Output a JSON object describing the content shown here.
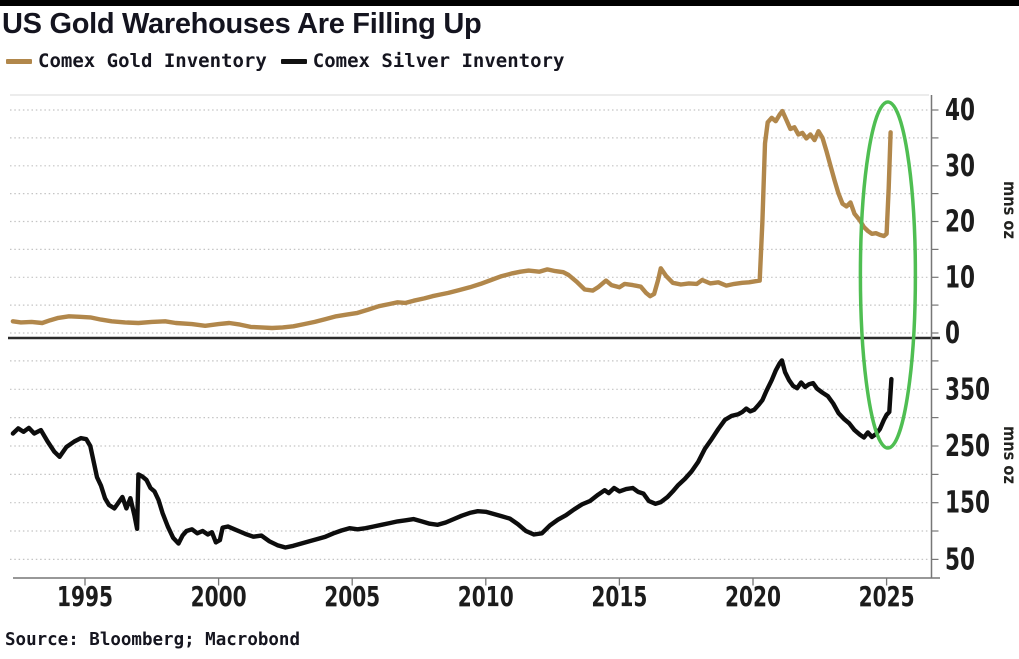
{
  "title": "US Gold Warehouses Are Filling Up",
  "legend": [
    {
      "label": "Comex Gold Inventory",
      "color": "#b1874b"
    },
    {
      "label": "Comex Silver Inventory",
      "color": "#111111"
    }
  ],
  "source": "Source: Bloomberg; Macrobond",
  "colors": {
    "gold_line": "#b1874b",
    "silver_line": "#0d0d0d",
    "highlight_green": "#4fbe52",
    "gridline": "#c4c4c4",
    "axis": "#777777",
    "separator": "#2b2b2b",
    "text": "#1c1c1c",
    "top_bar": "#000000"
  },
  "x_axis": {
    "ticks": [
      1995,
      2000,
      2005,
      2010,
      2015,
      2020,
      2025
    ],
    "range": [
      1992.1,
      2026.9
    ]
  },
  "annotation": {
    "shape": "ellipse",
    "color": "#4fbe52",
    "center_year": 2025.05,
    "description": "green ellipse highlighting the early-2025 spike in both gold and silver inventories"
  },
  "chart_data": [
    {
      "type": "line",
      "panel": "top",
      "name": "Comex Gold Inventory",
      "ylabel": "mns oz",
      "color": "#b1874b",
      "yticks": [
        0,
        10,
        20,
        30,
        40
      ],
      "ygrid_step": 5,
      "grid_from": 0,
      "grid_to": 40,
      "ylim": [
        0,
        42.5
      ],
      "x_unit": "year",
      "points": [
        [
          1992.3,
          2.1
        ],
        [
          1992.6,
          1.9
        ],
        [
          1993.0,
          2.0
        ],
        [
          1993.4,
          1.8
        ],
        [
          1993.7,
          2.3
        ],
        [
          1994.0,
          2.7
        ],
        [
          1994.4,
          3.0
        ],
        [
          1994.8,
          2.9
        ],
        [
          1995.2,
          2.8
        ],
        [
          1995.6,
          2.4
        ],
        [
          1996.0,
          2.1
        ],
        [
          1996.5,
          1.9
        ],
        [
          1997.0,
          1.8
        ],
        [
          1997.5,
          2.0
        ],
        [
          1998.0,
          2.1
        ],
        [
          1998.4,
          1.8
        ],
        [
          1999.0,
          1.6
        ],
        [
          1999.5,
          1.3
        ],
        [
          2000.0,
          1.6
        ],
        [
          2000.4,
          1.8
        ],
        [
          2000.8,
          1.5
        ],
        [
          2001.2,
          1.1
        ],
        [
          2001.6,
          1.0
        ],
        [
          2002.0,
          0.9
        ],
        [
          2002.4,
          1.0
        ],
        [
          2002.8,
          1.2
        ],
        [
          2003.2,
          1.6
        ],
        [
          2003.6,
          2.0
        ],
        [
          2004.0,
          2.5
        ],
        [
          2004.4,
          3.0
        ],
        [
          2004.8,
          3.3
        ],
        [
          2005.2,
          3.6
        ],
        [
          2005.6,
          4.2
        ],
        [
          2006.0,
          4.8
        ],
        [
          2006.4,
          5.2
        ],
        [
          2006.7,
          5.5
        ],
        [
          2007.0,
          5.4
        ],
        [
          2007.3,
          5.8
        ],
        [
          2007.7,
          6.2
        ],
        [
          2008.0,
          6.6
        ],
        [
          2008.3,
          6.9
        ],
        [
          2008.6,
          7.2
        ],
        [
          2009.0,
          7.7
        ],
        [
          2009.4,
          8.2
        ],
        [
          2009.8,
          8.8
        ],
        [
          2010.2,
          9.5
        ],
        [
          2010.6,
          10.2
        ],
        [
          2011.0,
          10.7
        ],
        [
          2011.3,
          11.0
        ],
        [
          2011.6,
          11.2
        ],
        [
          2012.0,
          11.0
        ],
        [
          2012.3,
          11.4
        ],
        [
          2012.6,
          11.1
        ],
        [
          2012.9,
          10.9
        ],
        [
          2013.1,
          10.4
        ],
        [
          2013.4,
          9.2
        ],
        [
          2013.7,
          7.8
        ],
        [
          2014.0,
          7.6
        ],
        [
          2014.2,
          8.2
        ],
        [
          2014.5,
          9.4
        ],
        [
          2014.7,
          8.6
        ],
        [
          2015.0,
          8.2
        ],
        [
          2015.2,
          8.8
        ],
        [
          2015.5,
          8.6
        ],
        [
          2015.8,
          8.3
        ],
        [
          2016.0,
          7.2
        ],
        [
          2016.15,
          6.6
        ],
        [
          2016.3,
          7.0
        ],
        [
          2016.45,
          9.5
        ],
        [
          2016.55,
          11.6
        ],
        [
          2016.75,
          10.2
        ],
        [
          2017.0,
          9.0
        ],
        [
          2017.3,
          8.7
        ],
        [
          2017.6,
          8.9
        ],
        [
          2017.9,
          8.8
        ],
        [
          2018.1,
          9.5
        ],
        [
          2018.4,
          8.9
        ],
        [
          2018.7,
          9.1
        ],
        [
          2019.0,
          8.5
        ],
        [
          2019.3,
          8.8
        ],
        [
          2019.6,
          9.0
        ],
        [
          2019.85,
          9.1
        ],
        [
          2020.1,
          9.3
        ],
        [
          2020.25,
          9.4
        ],
        [
          2020.35,
          20.0
        ],
        [
          2020.45,
          34.0
        ],
        [
          2020.55,
          37.8
        ],
        [
          2020.7,
          38.6
        ],
        [
          2020.85,
          38.0
        ],
        [
          2021.0,
          39.2
        ],
        [
          2021.1,
          39.8
        ],
        [
          2021.25,
          38.2
        ],
        [
          2021.4,
          36.6
        ],
        [
          2021.55,
          36.9
        ],
        [
          2021.7,
          35.6
        ],
        [
          2021.85,
          35.9
        ],
        [
          2022.0,
          34.9
        ],
        [
          2022.15,
          35.6
        ],
        [
          2022.3,
          34.6
        ],
        [
          2022.45,
          36.2
        ],
        [
          2022.6,
          35.0
        ],
        [
          2022.75,
          32.6
        ],
        [
          2022.9,
          30.0
        ],
        [
          2023.05,
          27.4
        ],
        [
          2023.2,
          25.0
        ],
        [
          2023.35,
          23.2
        ],
        [
          2023.5,
          22.7
        ],
        [
          2023.65,
          23.4
        ],
        [
          2023.8,
          21.4
        ],
        [
          2024.0,
          20.2
        ],
        [
          2024.15,
          19.0
        ],
        [
          2024.3,
          18.3
        ],
        [
          2024.45,
          17.8
        ],
        [
          2024.6,
          17.9
        ],
        [
          2024.75,
          17.6
        ],
        [
          2024.9,
          17.4
        ],
        [
          2025.0,
          17.8
        ],
        [
          2025.08,
          26.0
        ],
        [
          2025.15,
          36.0
        ]
      ]
    },
    {
      "type": "line",
      "panel": "bottom",
      "name": "Comex Silver Inventory",
      "ylabel": "mns oz",
      "color": "#0d0d0d",
      "yticks": [
        50,
        150,
        250,
        350
      ],
      "ygrid_step": 50,
      "grid_from": 50,
      "grid_to": 400,
      "ylim": [
        18,
        431
      ],
      "x_unit": "year",
      "points": [
        [
          1992.3,
          272
        ],
        [
          1992.5,
          281
        ],
        [
          1992.7,
          275
        ],
        [
          1992.9,
          282
        ],
        [
          1993.1,
          272
        ],
        [
          1993.35,
          278
        ],
        [
          1993.6,
          258
        ],
        [
          1993.85,
          240
        ],
        [
          1994.05,
          231
        ],
        [
          1994.3,
          248
        ],
        [
          1994.6,
          258
        ],
        [
          1994.85,
          264
        ],
        [
          1995.05,
          262
        ],
        [
          1995.2,
          250
        ],
        [
          1995.45,
          195
        ],
        [
          1995.6,
          180
        ],
        [
          1995.75,
          158
        ],
        [
          1995.9,
          146
        ],
        [
          1996.1,
          140
        ],
        [
          1996.25,
          150
        ],
        [
          1996.4,
          160
        ],
        [
          1996.55,
          140
        ],
        [
          1996.7,
          158
        ],
        [
          1996.85,
          128
        ],
        [
          1996.95,
          104
        ],
        [
          1997.0,
          200
        ],
        [
          1997.15,
          196
        ],
        [
          1997.3,
          190
        ],
        [
          1997.45,
          176
        ],
        [
          1997.6,
          170
        ],
        [
          1997.75,
          155
        ],
        [
          1997.9,
          132
        ],
        [
          1998.1,
          108
        ],
        [
          1998.3,
          88
        ],
        [
          1998.5,
          78
        ],
        [
          1998.65,
          92
        ],
        [
          1998.8,
          100
        ],
        [
          1999.0,
          103
        ],
        [
          1999.2,
          96
        ],
        [
          1999.4,
          100
        ],
        [
          1999.6,
          94
        ],
        [
          1999.75,
          98
        ],
        [
          1999.9,
          80
        ],
        [
          2000.05,
          84
        ],
        [
          2000.15,
          106
        ],
        [
          2000.35,
          108
        ],
        [
          2000.55,
          104
        ],
        [
          2000.8,
          99
        ],
        [
          2001.0,
          95
        ],
        [
          2001.3,
          90
        ],
        [
          2001.6,
          92
        ],
        [
          2001.9,
          82
        ],
        [
          2002.2,
          75
        ],
        [
          2002.5,
          71
        ],
        [
          2002.8,
          74
        ],
        [
          2003.1,
          78
        ],
        [
          2003.4,
          82
        ],
        [
          2003.7,
          86
        ],
        [
          2004.0,
          90
        ],
        [
          2004.3,
          96
        ],
        [
          2004.6,
          101
        ],
        [
          2004.9,
          105
        ],
        [
          2005.2,
          103
        ],
        [
          2005.5,
          105
        ],
        [
          2005.8,
          108
        ],
        [
          2006.1,
          111
        ],
        [
          2006.4,
          114
        ],
        [
          2006.7,
          117
        ],
        [
          2007.0,
          119
        ],
        [
          2007.3,
          121
        ],
        [
          2007.6,
          117
        ],
        [
          2007.9,
          113
        ],
        [
          2008.2,
          111
        ],
        [
          2008.5,
          115
        ],
        [
          2008.8,
          121
        ],
        [
          2009.1,
          127
        ],
        [
          2009.4,
          132
        ],
        [
          2009.7,
          135
        ],
        [
          2010.0,
          134
        ],
        [
          2010.3,
          130
        ],
        [
          2010.6,
          126
        ],
        [
          2010.9,
          122
        ],
        [
          2011.2,
          112
        ],
        [
          2011.5,
          100
        ],
        [
          2011.8,
          94
        ],
        [
          2012.1,
          96
        ],
        [
          2012.4,
          110
        ],
        [
          2012.7,
          120
        ],
        [
          2013.0,
          128
        ],
        [
          2013.3,
          138
        ],
        [
          2013.6,
          147
        ],
        [
          2013.9,
          153
        ],
        [
          2014.2,
          164
        ],
        [
          2014.45,
          172
        ],
        [
          2014.6,
          167
        ],
        [
          2014.8,
          176
        ],
        [
          2015.0,
          170
        ],
        [
          2015.25,
          174
        ],
        [
          2015.5,
          176
        ],
        [
          2015.7,
          169
        ],
        [
          2015.9,
          166
        ],
        [
          2016.1,
          153
        ],
        [
          2016.35,
          148
        ],
        [
          2016.55,
          151
        ],
        [
          2016.8,
          160
        ],
        [
          2017.0,
          170
        ],
        [
          2017.2,
          181
        ],
        [
          2017.45,
          192
        ],
        [
          2017.7,
          205
        ],
        [
          2017.95,
          222
        ],
        [
          2018.2,
          245
        ],
        [
          2018.45,
          262
        ],
        [
          2018.7,
          280
        ],
        [
          2018.95,
          296
        ],
        [
          2019.2,
          303
        ],
        [
          2019.45,
          306
        ],
        [
          2019.6,
          310
        ],
        [
          2019.75,
          316
        ],
        [
          2019.9,
          311
        ],
        [
          2020.05,
          314
        ],
        [
          2020.2,
          322
        ],
        [
          2020.35,
          331
        ],
        [
          2020.5,
          347
        ],
        [
          2020.7,
          366
        ],
        [
          2020.85,
          383
        ],
        [
          2021.0,
          396
        ],
        [
          2021.08,
          401
        ],
        [
          2021.2,
          380
        ],
        [
          2021.35,
          366
        ],
        [
          2021.5,
          356
        ],
        [
          2021.65,
          352
        ],
        [
          2021.8,
          362
        ],
        [
          2021.95,
          354
        ],
        [
          2022.1,
          359
        ],
        [
          2022.25,
          361
        ],
        [
          2022.4,
          351
        ],
        [
          2022.6,
          344
        ],
        [
          2022.8,
          338
        ],
        [
          2023.0,
          325
        ],
        [
          2023.2,
          308
        ],
        [
          2023.4,
          298
        ],
        [
          2023.6,
          290
        ],
        [
          2023.8,
          278
        ],
        [
          2024.0,
          270
        ],
        [
          2024.15,
          265
        ],
        [
          2024.3,
          274
        ],
        [
          2024.45,
          266
        ],
        [
          2024.6,
          271
        ],
        [
          2024.75,
          280
        ],
        [
          2024.9,
          296
        ],
        [
          2025.0,
          305
        ],
        [
          2025.1,
          310
        ],
        [
          2025.18,
          368
        ]
      ]
    }
  ]
}
